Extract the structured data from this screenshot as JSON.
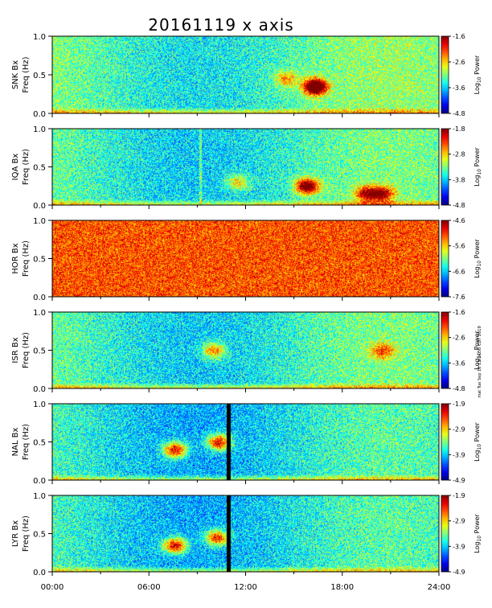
{
  "title": "20161119 x axis",
  "stamp": "mat Tue Sep 10 13:14:50 CDT 2019",
  "x_ticks": [
    "00:00",
    "06:00",
    "12:00",
    "18:00",
    "24:00"
  ],
  "y_ticks": [
    "0.0",
    "0.5",
    "1.0"
  ],
  "colorbar_label": "Log",
  "colorbar_label_sub": "10",
  "colorbar_label_tail": " Power",
  "chart_data": [
    {
      "type": "heatmap",
      "station": "SNK",
      "ylabel_station": "SNK Bx",
      "ylabel_unit": "Freq (Hz)",
      "x": [
        0,
        24
      ],
      "ylim": [
        0,
        1
      ],
      "clim": [
        -4.8,
        -1.6
      ],
      "cbar_ticks": [
        "-1.6",
        "-2.6",
        "-3.6",
        "-4.8"
      ],
      "features": [
        {
          "t": 16.3,
          "f": 0.35,
          "strength": 0.9
        },
        {
          "t": 14.5,
          "f": 0.45,
          "strength": 0.3
        }
      ],
      "baseline": 0.45,
      "vlines": [],
      "gaps": []
    },
    {
      "type": "heatmap",
      "station": "IQA",
      "ylabel_station": "IQA Bx",
      "ylabel_unit": "Freq (Hz)",
      "x": [
        0,
        24
      ],
      "ylim": [
        0,
        1
      ],
      "clim": [
        -4.8,
        -1.8
      ],
      "cbar_ticks": [
        "-1.8",
        "-2.8",
        "-3.8",
        "-4.8"
      ],
      "features": [
        {
          "t": 15.8,
          "f": 0.25,
          "strength": 0.7
        },
        {
          "t": 11.5,
          "f": 0.3,
          "strength": 0.3
        },
        {
          "t": 19.5,
          "f": 0.15,
          "strength": 0.5
        },
        {
          "t": 20.5,
          "f": 0.15,
          "strength": 0.5
        }
      ],
      "baseline": 0.42,
      "vlines": [
        9.2
      ],
      "gaps": []
    },
    {
      "type": "heatmap",
      "station": "HOR",
      "ylabel_station": "HOR Bx",
      "ylabel_unit": "Freq (Hz)",
      "x": [
        0,
        24
      ],
      "ylim": [
        0,
        1
      ],
      "clim": [
        -7.8,
        -4.6
      ],
      "cbar_ticks": [
        "-4.6",
        "-5.6",
        "-6.6",
        "-7.6"
      ],
      "features": [],
      "baseline": 0.8,
      "vlines": [],
      "gaps": []
    },
    {
      "type": "heatmap",
      "station": "ISR",
      "ylabel_station": "ISR Bx",
      "ylabel_unit": "Freq (Hz)",
      "x": [
        0,
        24
      ],
      "ylim": [
        0,
        1
      ],
      "clim": [
        -4.8,
        -1.6
      ],
      "cbar_ticks": [
        "-1.6",
        "-2.6",
        "-3.6",
        "-4.8"
      ],
      "features": [
        {
          "t": 10.0,
          "f": 0.5,
          "strength": 0.4
        },
        {
          "t": 20.5,
          "f": 0.5,
          "strength": 0.35
        }
      ],
      "baseline": 0.42,
      "vlines": [],
      "gaps": []
    },
    {
      "type": "heatmap",
      "station": "NAL",
      "ylabel_station": "NAL Bx",
      "ylabel_unit": "Freq (Hz)",
      "x": [
        0,
        24
      ],
      "ylim": [
        0,
        1
      ],
      "clim": [
        -4.9,
        -1.9
      ],
      "cbar_ticks": [
        "-1.9",
        "-2.9",
        "-3.9",
        "-4.9"
      ],
      "features": [
        {
          "t": 7.6,
          "f": 0.4,
          "strength": 0.6
        },
        {
          "t": 10.3,
          "f": 0.5,
          "strength": 0.6
        }
      ],
      "baseline": 0.38,
      "vlines": [],
      "gaps": [
        [
          10.8,
          11.05
        ]
      ]
    },
    {
      "type": "heatmap",
      "station": "LYR",
      "ylabel_station": "LYR Bx",
      "ylabel_unit": "Freq (Hz)",
      "x": [
        0,
        24
      ],
      "ylim": [
        0,
        1
      ],
      "clim": [
        -4.9,
        -1.9
      ],
      "cbar_ticks": [
        "-1.9",
        "-2.9",
        "-3.9",
        "-4.9"
      ],
      "features": [
        {
          "t": 7.6,
          "f": 0.35,
          "strength": 0.6
        },
        {
          "t": 10.2,
          "f": 0.45,
          "strength": 0.55
        }
      ],
      "baseline": 0.38,
      "vlines": [],
      "gaps": [
        [
          10.8,
          11.05
        ]
      ]
    }
  ]
}
